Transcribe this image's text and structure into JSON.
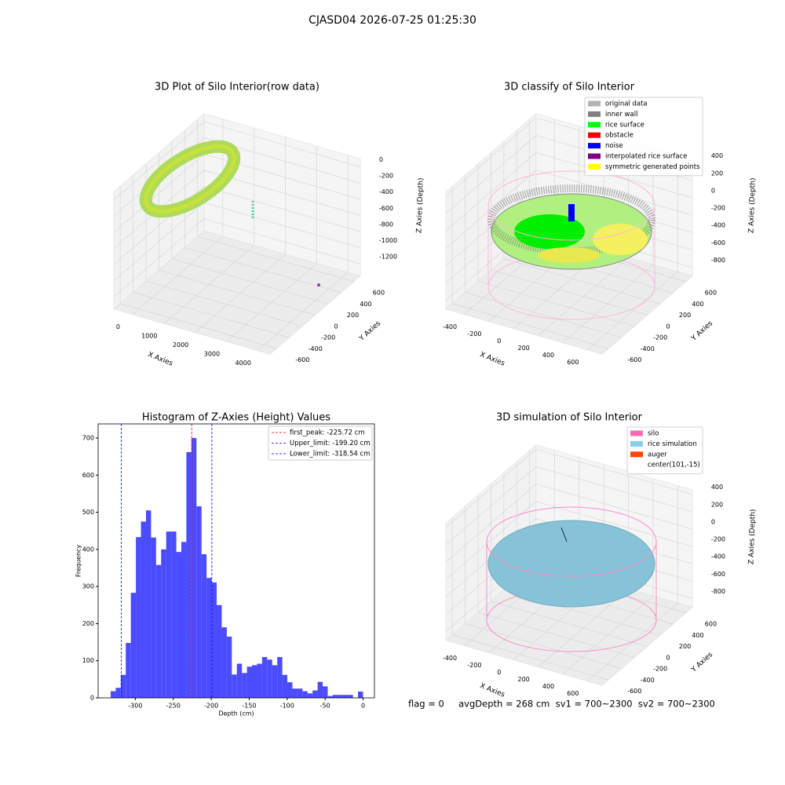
{
  "title": "CJASD04 2026-07-25 01:25:30",
  "footer": "flag = 0     avgDepth = 268 cm  sv1 = 700~2300  sv2 = 700~2300",
  "chart_data": [
    {
      "type": "scatter3d",
      "title": "3D Plot of Silo Interior(row data)",
      "xlabel": "X Axies",
      "ylabel": "Y Axies",
      "zlabel": "Z Axies (Depth)",
      "xlim": [
        -600,
        4400
      ],
      "xticks": [
        0,
        1000,
        2000,
        3000,
        4000
      ],
      "ylim": [
        -700,
        700
      ],
      "yticks": [
        -600,
        -400,
        -200,
        0,
        200,
        400,
        600
      ],
      "zlim": [
        -1350,
        100
      ],
      "zticks": [
        -1200,
        -1000,
        -800,
        -600,
        -400,
        -200,
        0
      ]
    },
    {
      "type": "scatter3d",
      "title": "3D classify of Silo Interior",
      "xlabel": "X Axies",
      "ylabel": "Y Axies",
      "zlabel": "Z Axies (Depth)",
      "xlim": [
        -550,
        720
      ],
      "xticks": [
        -400,
        -200,
        0,
        200,
        400,
        600
      ],
      "ylim": [
        -700,
        700
      ],
      "yticks": [
        -600,
        -400,
        -200,
        0,
        200,
        400,
        600
      ],
      "zlim": [
        -900,
        450
      ],
      "zticks": [
        -800,
        -600,
        -400,
        -200,
        0,
        200,
        400
      ],
      "legend": [
        {
          "name": "original data",
          "color": "#b3b3b3"
        },
        {
          "name": "inner wall",
          "color": "#808080"
        },
        {
          "name": "rice surface",
          "color": "#00ff00"
        },
        {
          "name": "obstacle",
          "color": "#ff0000"
        },
        {
          "name": "noise",
          "color": "#0000ff"
        },
        {
          "name": "interpolated rice surface",
          "color": "#800080"
        },
        {
          "name": "symmetric generated points",
          "color": "#ffff00"
        }
      ]
    },
    {
      "type": "histogram",
      "title": "Histogram of Z-Axies (Height) Values",
      "xlabel": "Depth (cm)",
      "ylabel": "Frequency",
      "color": "#4b4bff",
      "bins": [
        -332.5,
        -325.85,
        -319.2,
        -312.55,
        -305.9,
        -299.25,
        -292.6,
        -285.95,
        -279.3,
        -272.65,
        -266,
        -259.35,
        -252.7,
        -246.05,
        -239.4,
        -232.75,
        -226.1,
        -219.45,
        -212.8,
        -206.15,
        -199.5,
        -192.85,
        -186.2,
        -179.55,
        -172.9,
        -166.25,
        -159.6,
        -152.95,
        -146.3,
        -139.65,
        -133,
        -126.35,
        -119.7,
        -113.05,
        -106.4,
        -99.75,
        -93.1,
        -86.45,
        -79.8,
        -73.15,
        -66.5,
        -59.85,
        -53.2,
        -46.55,
        -39.9,
        -33.25,
        -26.6,
        -19.95,
        -13.3,
        -6.65,
        0
      ],
      "values": [
        18,
        27,
        62,
        148,
        283,
        433,
        475,
        505,
        432,
        358,
        400,
        448,
        448,
        393,
        420,
        662,
        700,
        516,
        387,
        323,
        311,
        250,
        190,
        165,
        63,
        92,
        67,
        84,
        88,
        92,
        110,
        103,
        88,
        110,
        62,
        42,
        25,
        25,
        18,
        12,
        20,
        43,
        31,
        5,
        8,
        8,
        8,
        8,
        0,
        17
      ],
      "xlim": [
        -349,
        15
      ],
      "xticks": [
        -300,
        -250,
        -200,
        -150,
        -100,
        -50,
        0
      ],
      "ylim": [
        0,
        738
      ],
      "yticks": [
        0,
        100,
        200,
        300,
        400,
        500,
        600,
        700
      ],
      "vlines": [
        {
          "value": -225.72,
          "label": "first_peak: -225.72 cm",
          "color": "#ff0000"
        },
        {
          "value": -199.2,
          "label": "Upper_limit: -199.20 cm",
          "color": "#0000ff"
        },
        {
          "value": -318.54,
          "label": "Lower_limit: -318.54 cm",
          "color": "#0000ff"
        }
      ]
    },
    {
      "type": "surface3d",
      "title": "3D simulation of Silo Interior",
      "xlabel": "X Axies",
      "ylabel": "Y Axies",
      "zlabel": "Z Axies (Depth)",
      "xlim": [
        -550,
        720
      ],
      "xticks": [
        -400,
        -200,
        0,
        200,
        400,
        600
      ],
      "ylim": [
        -700,
        700
      ],
      "yticks": [
        -600,
        -400,
        -200,
        0,
        200,
        400,
        600
      ],
      "zlim": [
        -900,
        450
      ],
      "zticks": [
        -800,
        -600,
        -400,
        -200,
        0,
        200,
        400
      ],
      "legend": [
        {
          "name": "silo",
          "color": "#ff69b4"
        },
        {
          "name": "rice simulation",
          "color": "#87ceeb"
        },
        {
          "name": "auger",
          "color": "#ff4500"
        },
        {
          "name": "center(101,-15)"
        }
      ]
    }
  ]
}
